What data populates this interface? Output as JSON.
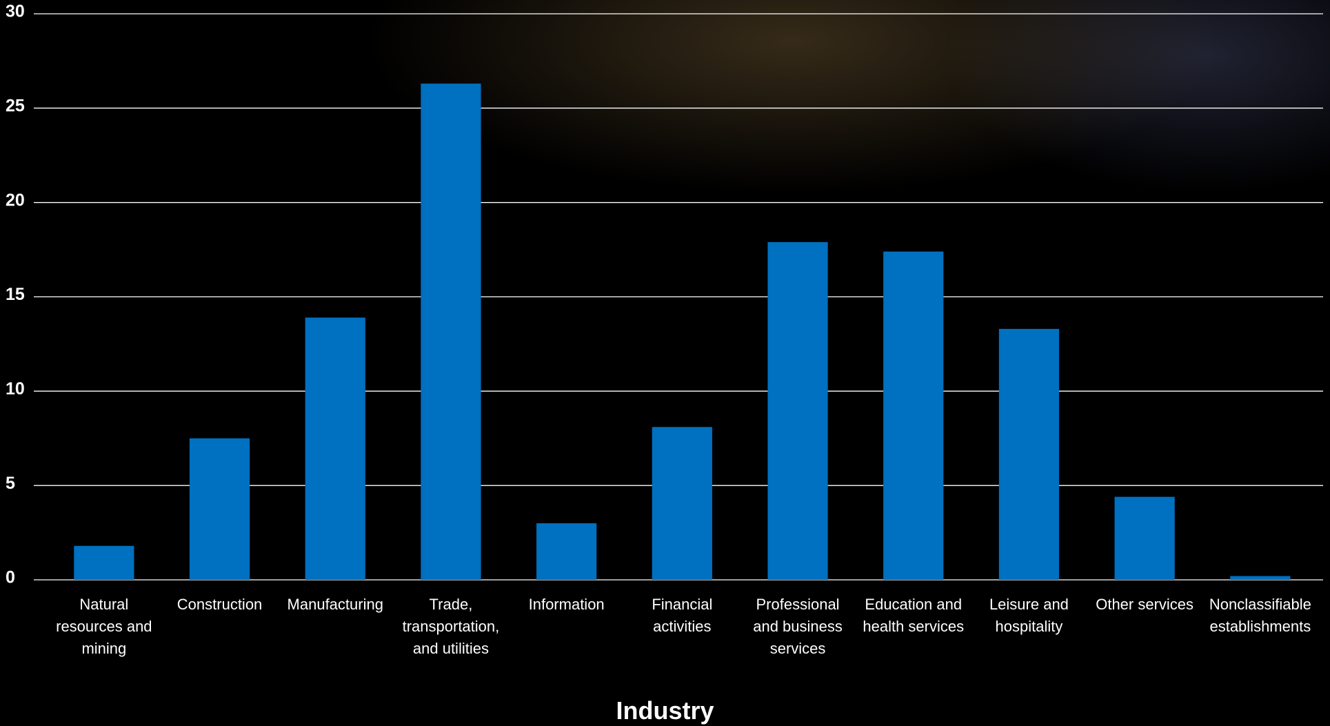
{
  "chart_data": {
    "type": "bar",
    "x_label": "Industry",
    "categories": [
      "Natural resources and mining",
      "Construction",
      "Manufacturing",
      "Trade, transportation, and utilities",
      "Information",
      "Financial activities",
      "Professional and business services",
      "Education and health services",
      "Leisure and hospitality",
      "Other services",
      "Nonclassifiable establishments"
    ],
    "values": [
      1.8,
      7.5,
      13.9,
      26.3,
      3.0,
      8.1,
      17.9,
      17.4,
      13.3,
      4.4,
      0.2
    ],
    "color": "#0070c0",
    "ylim": [
      0,
      30
    ],
    "yticks": [
      0,
      5,
      10,
      15,
      20,
      25,
      30
    ],
    "grid": true
  }
}
